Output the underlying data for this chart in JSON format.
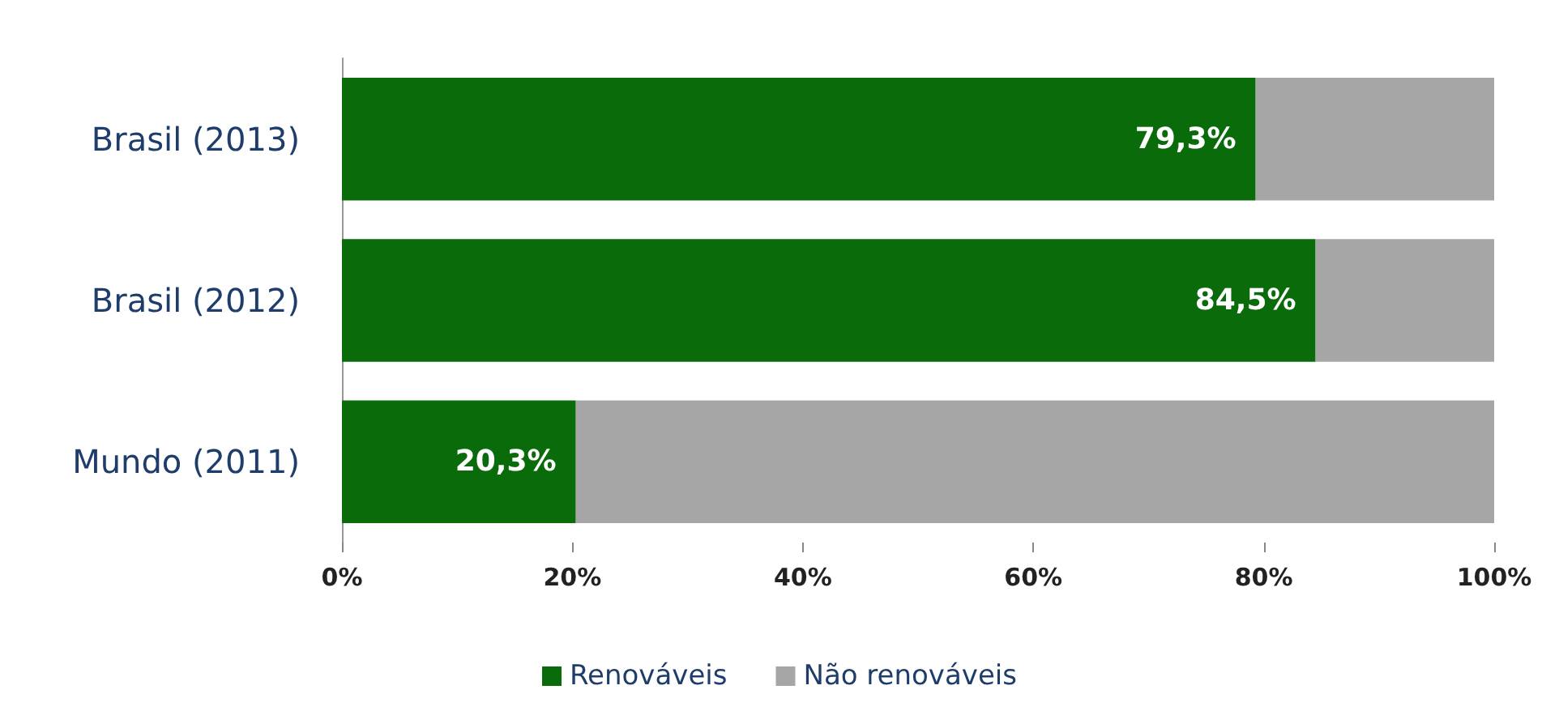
{
  "chart_data": {
    "type": "bar",
    "orientation": "horizontal",
    "stacked": true,
    "categories": [
      "Brasil (2013)",
      "Brasil (2012)",
      "Mundo (2011)"
    ],
    "series": [
      {
        "name": "Renováveis",
        "color": "#0a6b0a",
        "values": [
          79.3,
          84.5,
          20.3
        ],
        "value_labels": [
          "79,3%",
          "84,5%",
          "20,3%"
        ]
      },
      {
        "name": "Não renováveis",
        "color": "#a6a6a6",
        "values": [
          20.7,
          15.5,
          79.7
        ]
      }
    ],
    "xlim": [
      0,
      100
    ],
    "xticks": [
      {
        "value": 0,
        "label": "0%"
      },
      {
        "value": 20,
        "label": "20%"
      },
      {
        "value": 40,
        "label": "40%"
      },
      {
        "value": 60,
        "label": "60%"
      },
      {
        "value": 80,
        "label": "80%"
      },
      {
        "value": 100,
        "label": "100%"
      }
    ],
    "grid": false,
    "legend": "bottom"
  }
}
